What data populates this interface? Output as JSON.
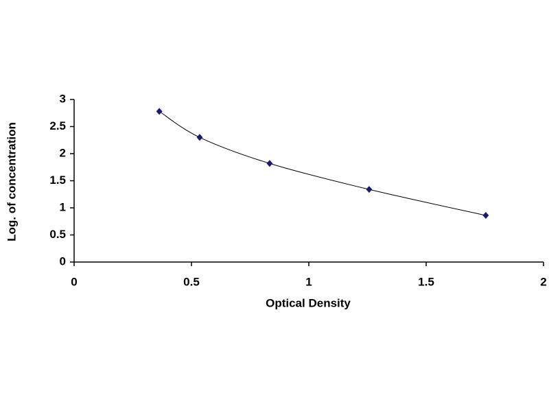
{
  "chart_data": {
    "type": "scatter",
    "x_label": "Optical Density",
    "y_label": "Log. of concentration",
    "series": [
      {
        "x": [
          0.363,
          0.535,
          0.833,
          1.257,
          1.754
        ],
        "values": [
          2.78,
          2.3,
          1.82,
          1.34,
          0.86
        ],
        "color": "#1a1a6e",
        "line_color": "#000000"
      }
    ],
    "xlim": [
      0,
      2
    ],
    "xticks": [
      0,
      0.5,
      1,
      1.5,
      2
    ],
    "ylim": [
      0,
      3
    ],
    "yticks": [
      0,
      0.5,
      1,
      1.5,
      2,
      2.5,
      3
    ],
    "grid": false,
    "smooth_line": true
  }
}
